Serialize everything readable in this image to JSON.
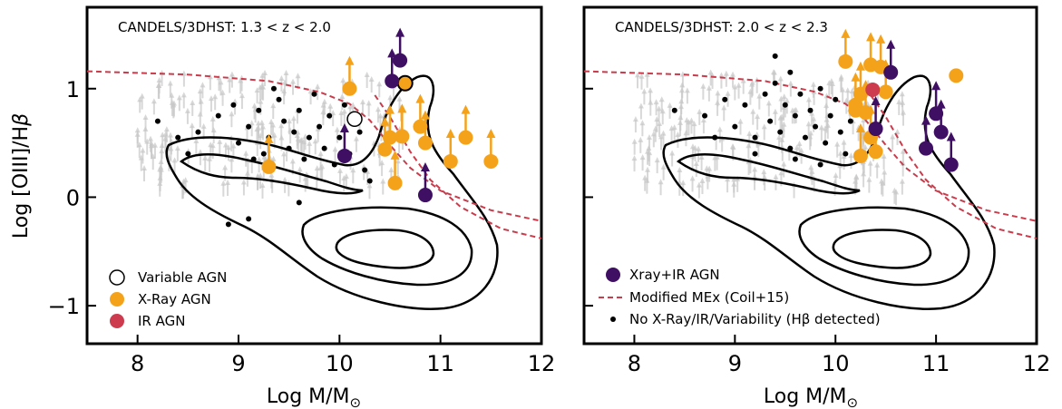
{
  "figure": {
    "ylabel": "Log [OIII]/H",
    "ylabel_greek": "β",
    "xlabel": "Log M/M",
    "xlabel_sub": "⊙"
  },
  "colors": {
    "variable_agn": "#ffffff",
    "xray_agn": "#f5a21b",
    "ir_agn": "#cc3c4e",
    "xray_ir_agn": "#3f0f63",
    "mex_line": "#c83c4c",
    "background_arrows": "#c8c8c8",
    "detected": "#000000"
  },
  "chart_data": [
    {
      "type": "scatter",
      "title": "CANDELS/3DHST:  1.3 < z < 2.0",
      "xlim": [
        7.5,
        12.0
      ],
      "ylim": [
        -1.35,
        1.75
      ],
      "xticks": [
        8,
        9,
        10,
        11,
        12
      ],
      "yticks": [
        -1,
        0,
        1
      ],
      "ytick_labels": [
        "−1",
        "0",
        "1"
      ],
      "legend_position": "lower-left",
      "legend": [
        {
          "label": "Variable AGN",
          "marker": "open-circle"
        },
        {
          "label": "X-Ray AGN",
          "marker": "orange-circle"
        },
        {
          "label": "IR AGN",
          "marker": "red-circle"
        }
      ],
      "mex_curves": [
        [
          [
            7.5,
            1.16
          ],
          [
            8.5,
            1.13
          ],
          [
            9.3,
            1.07
          ],
          [
            9.8,
            0.97
          ],
          [
            10.1,
            0.86
          ],
          [
            10.3,
            0.71
          ],
          [
            10.5,
            0.48
          ],
          [
            10.7,
            0.27
          ],
          [
            11.0,
            0.06
          ],
          [
            11.5,
            -0.12
          ],
          [
            12.0,
            -0.22
          ]
        ],
        [
          [
            10.35,
            0.94
          ],
          [
            10.5,
            0.74
          ],
          [
            10.7,
            0.42
          ],
          [
            10.9,
            0.16
          ],
          [
            11.2,
            -0.09
          ],
          [
            11.6,
            -0.29
          ],
          [
            12.0,
            -0.38
          ]
        ]
      ],
      "series": [
        {
          "name": "Variable AGN",
          "marker": "open-circle",
          "points": [
            [
              10.15,
              0.72
            ]
          ]
        },
        {
          "name": "X-Ray AGN",
          "marker": "orange-circle",
          "arrow_up": true,
          "points": [
            [
              9.3,
              0.28
            ],
            [
              10.1,
              1.0
            ],
            [
              10.45,
              0.44
            ],
            [
              10.5,
              0.55
            ],
            [
              10.62,
              0.56
            ],
            [
              10.55,
              0.13
            ],
            [
              10.8,
              0.65
            ],
            [
              10.85,
              0.5
            ],
            [
              11.1,
              0.33
            ],
            [
              11.25,
              0.55
            ],
            [
              11.5,
              0.33
            ]
          ]
        },
        {
          "name": "X-Ray AGN (Variable)",
          "marker": "orange-open-ring",
          "points": [
            [
              10.65,
              1.05
            ]
          ]
        },
        {
          "name": "Xray+IR AGN",
          "marker": "purple-circle",
          "arrow_up": true,
          "points": [
            [
              10.05,
              0.38
            ],
            [
              10.52,
              1.07
            ],
            [
              10.6,
              1.26
            ],
            [
              10.85,
              0.02
            ]
          ]
        },
        {
          "name": "No X-Ray/IR/Variability (Hβ detected)",
          "marker": "black-dot",
          "points": [
            [
              8.2,
              0.7
            ],
            [
              8.4,
              0.55
            ],
            [
              8.6,
              0.6
            ],
            [
              8.8,
              0.75
            ],
            [
              9.0,
              0.5
            ],
            [
              9.1,
              0.65
            ],
            [
              9.2,
              0.8
            ],
            [
              9.25,
              0.4
            ],
            [
              9.3,
              0.55
            ],
            [
              9.4,
              0.9
            ],
            [
              9.45,
              0.7
            ],
            [
              9.5,
              0.45
            ],
            [
              9.55,
              0.6
            ],
            [
              9.6,
              0.8
            ],
            [
              9.65,
              0.35
            ],
            [
              9.7,
              0.55
            ],
            [
              9.75,
              0.95
            ],
            [
              9.8,
              0.65
            ],
            [
              9.85,
              0.45
            ],
            [
              9.9,
              0.75
            ],
            [
              9.95,
              0.3
            ],
            [
              10.0,
              0.55
            ],
            [
              10.05,
              0.85
            ],
            [
              10.1,
              0.4
            ],
            [
              10.2,
              0.6
            ],
            [
              10.25,
              0.25
            ],
            [
              9.35,
              1.0
            ],
            [
              9.15,
              0.35
            ],
            [
              8.95,
              0.85
            ],
            [
              8.5,
              0.4
            ],
            [
              9.6,
              -0.05
            ],
            [
              9.1,
              -0.2
            ],
            [
              8.9,
              -0.25
            ],
            [
              10.3,
              0.15
            ]
          ]
        }
      ]
    },
    {
      "type": "scatter",
      "title": "CANDELS/3DHST:  2.0 < z < 2.3",
      "xlim": [
        7.5,
        12.0
      ],
      "ylim": [
        -1.35,
        1.75
      ],
      "xticks": [
        8,
        9,
        10,
        11,
        12
      ],
      "yticks": [
        -1,
        0,
        1
      ],
      "legend_position": "lower-left",
      "legend": [
        {
          "label": "Xray+IR AGN",
          "marker": "purple-circle"
        },
        {
          "label": "Modified MEx (Coil+15)",
          "marker": "dashed-line"
        },
        {
          "label": "No X-Ray/IR/Variability (Hβ detected)",
          "marker": "black-dot"
        }
      ],
      "mex_curves": [
        [
          [
            7.5,
            1.16
          ],
          [
            8.5,
            1.13
          ],
          [
            9.3,
            1.07
          ],
          [
            9.8,
            0.97
          ],
          [
            10.1,
            0.86
          ],
          [
            10.3,
            0.71
          ],
          [
            10.5,
            0.48
          ],
          [
            10.7,
            0.27
          ],
          [
            11.0,
            0.06
          ],
          [
            11.5,
            -0.12
          ],
          [
            12.0,
            -0.22
          ]
        ],
        [
          [
            10.35,
            0.94
          ],
          [
            10.5,
            0.74
          ],
          [
            10.7,
            0.42
          ],
          [
            10.9,
            0.16
          ],
          [
            11.2,
            -0.09
          ],
          [
            11.6,
            -0.29
          ],
          [
            12.0,
            -0.38
          ]
        ]
      ],
      "series": [
        {
          "name": "X-Ray AGN",
          "marker": "orange-circle",
          "arrow_up": true,
          "points": [
            [
              10.1,
              1.25
            ],
            [
              10.2,
              0.85
            ],
            [
              10.3,
              0.78
            ],
            [
              10.35,
              0.55
            ],
            [
              10.4,
              0.42
            ],
            [
              10.45,
              1.2
            ],
            [
              10.5,
              0.97
            ],
            [
              10.25,
              0.38
            ],
            [
              10.35,
              1.22
            ],
            [
              10.25,
              0.95
            ]
          ]
        },
        {
          "name": "X-Ray AGN (no limit)",
          "marker": "orange-circle",
          "points": [
            [
              11.2,
              1.12
            ],
            [
              10.2,
              0.8
            ]
          ]
        },
        {
          "name": "IR AGN",
          "marker": "red-circle",
          "points": [
            [
              10.37,
              0.99
            ]
          ]
        },
        {
          "name": "Xray+IR AGN",
          "marker": "purple-circle",
          "arrow_up": true,
          "points": [
            [
              10.55,
              1.15
            ],
            [
              10.4,
              0.63
            ],
            [
              10.9,
              0.45
            ],
            [
              11.0,
              0.77
            ],
            [
              11.05,
              0.6
            ],
            [
              11.15,
              0.3
            ]
          ]
        },
        {
          "name": "No X-Ray/IR/Variability (Hβ detected)",
          "marker": "black-dot",
          "points": [
            [
              8.4,
              0.8
            ],
            [
              8.7,
              0.75
            ],
            [
              8.9,
              0.9
            ],
            [
              9.0,
              0.65
            ],
            [
              9.1,
              0.85
            ],
            [
              9.2,
              0.55
            ],
            [
              9.3,
              0.95
            ],
            [
              9.35,
              0.7
            ],
            [
              9.4,
              1.05
            ],
            [
              9.45,
              0.6
            ],
            [
              9.5,
              0.85
            ],
            [
              9.55,
              0.45
            ],
            [
              9.6,
              0.75
            ],
            [
              9.65,
              0.95
            ],
            [
              9.7,
              0.55
            ],
            [
              9.75,
              0.8
            ],
            [
              9.8,
              0.65
            ],
            [
              9.85,
              1.0
            ],
            [
              9.9,
              0.5
            ],
            [
              9.95,
              0.75
            ],
            [
              10.0,
              0.9
            ],
            [
              10.05,
              0.6
            ],
            [
              10.1,
              0.4
            ],
            [
              9.85,
              0.3
            ],
            [
              9.55,
              1.15
            ],
            [
              9.4,
              1.3
            ],
            [
              9.2,
              0.4
            ],
            [
              8.8,
              0.55
            ],
            [
              9.6,
              0.35
            ],
            [
              10.15,
              0.7
            ]
          ]
        }
      ]
    }
  ]
}
